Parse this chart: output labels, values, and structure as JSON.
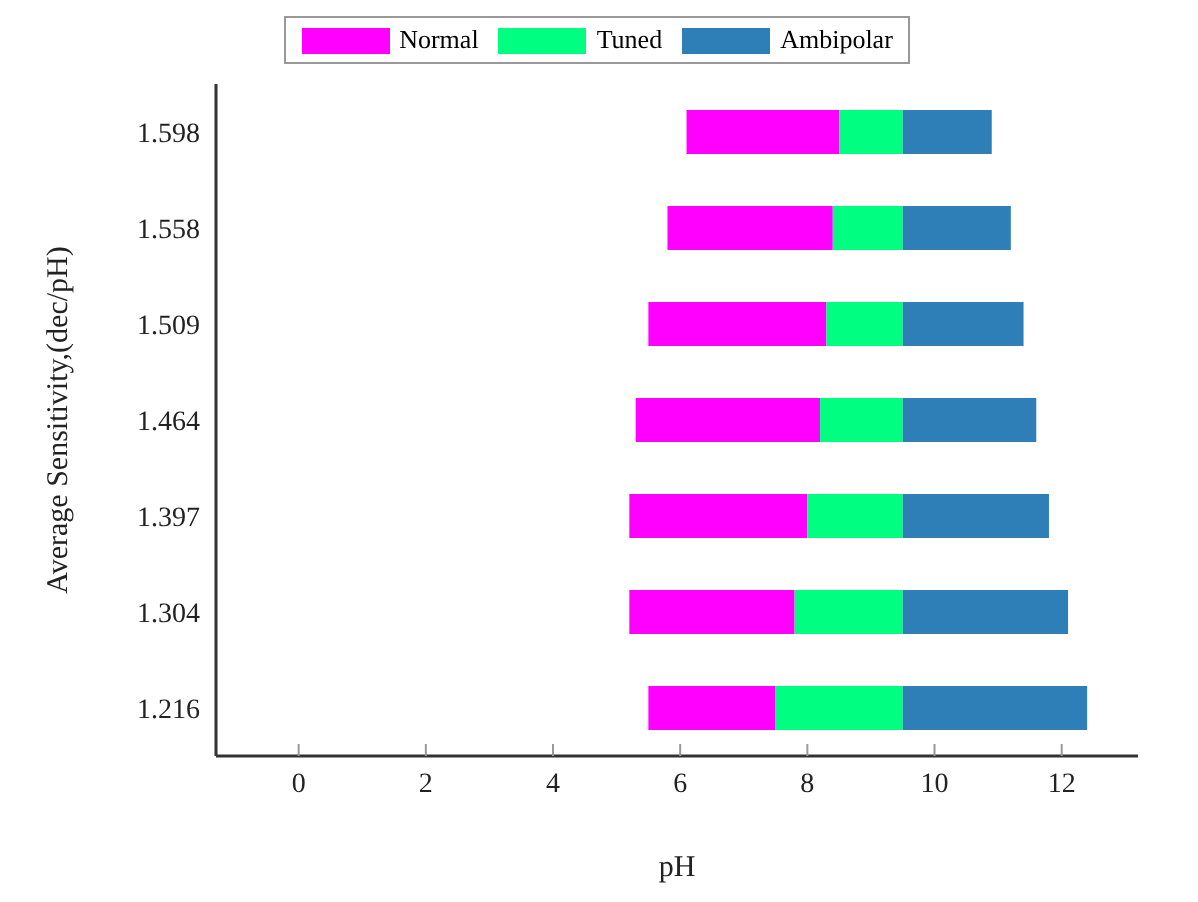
{
  "chart_data": {
    "type": "bar",
    "orientation": "horizontal",
    "xlabel": "pH",
    "ylabel": "Average Sensitivity,(dec/pH)",
    "categories": [
      "1.598",
      "1.558",
      "1.509",
      "1.464",
      "1.397",
      "1.304",
      "1.216"
    ],
    "series": [
      {
        "name": "Normal",
        "color": "#ff00ff",
        "base": [
          6.1,
          5.8,
          5.5,
          5.3,
          5.2,
          5.2,
          5.5
        ],
        "values": [
          2.4,
          2.6,
          2.8,
          2.9,
          2.8,
          2.6,
          2.0
        ]
      },
      {
        "name": "Tuned",
        "color": "#00ff80",
        "base": [
          8.5,
          8.4,
          8.3,
          8.2,
          8.0,
          7.8,
          7.5
        ],
        "values": [
          1.0,
          1.1,
          1.2,
          1.3,
          1.5,
          1.7,
          2.0
        ]
      },
      {
        "name": "Ambipolar",
        "color": "#2e7fb8",
        "base": [
          9.5,
          9.5,
          9.5,
          9.5,
          9.5,
          9.5,
          9.5
        ],
        "values": [
          1.4,
          1.7,
          1.9,
          2.1,
          2.3,
          2.6,
          2.9
        ]
      }
    ],
    "xlim": [
      -1.3,
      13.2
    ],
    "xticks": [
      0,
      2,
      4,
      6,
      8,
      10,
      12
    ],
    "legend": "top"
  }
}
